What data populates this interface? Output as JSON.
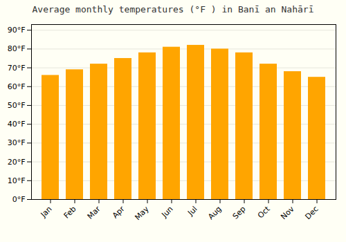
{
  "chart_data": {
    "type": "bar",
    "title": "Average monthly temperatures (°F ) in Banī an Nahārī",
    "categories": [
      "Jan",
      "Feb",
      "Mar",
      "Apr",
      "May",
      "Jun",
      "Jul",
      "Aug",
      "Sep",
      "Oct",
      "Nov",
      "Dec"
    ],
    "values": [
      66,
      69,
      72,
      75,
      78,
      81,
      82,
      80,
      78,
      72,
      68,
      65
    ],
    "color": "#FFA500",
    "ylim": [
      0,
      93
    ],
    "yticks": [
      {
        "value": 0,
        "label": "0°F"
      },
      {
        "value": 10,
        "label": "10°F"
      },
      {
        "value": 20,
        "label": "20°F"
      },
      {
        "value": 30,
        "label": "30°F"
      },
      {
        "value": 40,
        "label": "40°F"
      },
      {
        "value": 50,
        "label": "50°F"
      },
      {
        "value": 60,
        "label": "60°F"
      },
      {
        "value": 70,
        "label": "70°F"
      },
      {
        "value": 80,
        "label": "80°F"
      },
      {
        "value": 90,
        "label": "90°F"
      }
    ],
    "grid": true
  }
}
